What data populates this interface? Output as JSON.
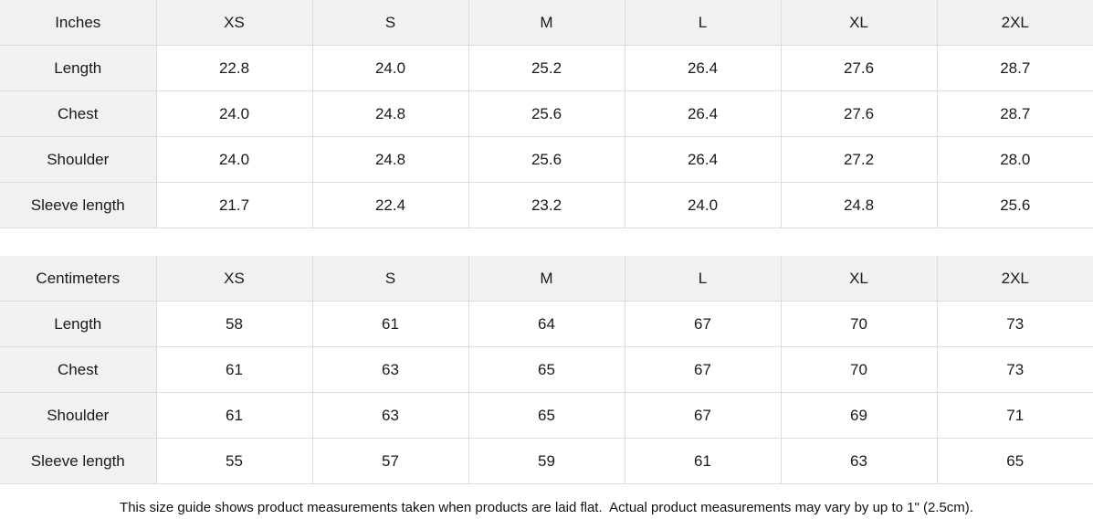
{
  "colors": {
    "header_bg": "#f1f1f1",
    "grid_border": "#dcdcdc",
    "text": "#1a1a1a",
    "background": "#ffffff"
  },
  "tables": [
    {
      "unit_label": "Inches",
      "size_headers": [
        "XS",
        "S",
        "M",
        "L",
        "XL",
        "2XL"
      ],
      "rows": [
        {
          "label": "Length",
          "values": [
            "22.8",
            "24.0",
            "25.2",
            "26.4",
            "27.6",
            "28.7"
          ]
        },
        {
          "label": "Chest",
          "values": [
            "24.0",
            "24.8",
            "25.6",
            "26.4",
            "27.6",
            "28.7"
          ]
        },
        {
          "label": "Shoulder",
          "values": [
            "24.0",
            "24.8",
            "25.6",
            "26.4",
            "27.2",
            "28.0"
          ]
        },
        {
          "label": "Sleeve length",
          "values": [
            "21.7",
            "22.4",
            "23.2",
            "24.0",
            "24.8",
            "25.6"
          ]
        }
      ]
    },
    {
      "unit_label": "Centimeters",
      "size_headers": [
        "XS",
        "S",
        "M",
        "L",
        "XL",
        "2XL"
      ],
      "rows": [
        {
          "label": "Length",
          "values": [
            "58",
            "61",
            "64",
            "67",
            "70",
            "73"
          ]
        },
        {
          "label": "Chest",
          "values": [
            "61",
            "63",
            "65",
            "67",
            "70",
            "73"
          ]
        },
        {
          "label": "Shoulder",
          "values": [
            "61",
            "63",
            "65",
            "67",
            "69",
            "71"
          ]
        },
        {
          "label": "Sleeve length",
          "values": [
            "55",
            "57",
            "59",
            "61",
            "63",
            "65"
          ]
        }
      ]
    }
  ],
  "footer": {
    "note": "This size guide shows product measurements taken when products are laid flat.  Actual product measurements may vary by up to 1\" (2.5cm)."
  }
}
